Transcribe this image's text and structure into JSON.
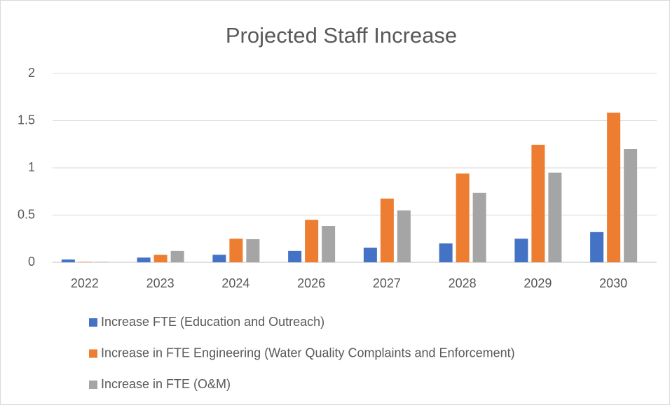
{
  "chart_data": {
    "type": "bar",
    "title": "Projected Staff Increase",
    "categories": [
      "2022",
      "2023",
      "2024",
      "2026",
      "2027",
      "2028",
      "2029",
      "2030"
    ],
    "series": [
      {
        "name": "Increase FTE (Education and Outreach)",
        "color": "#4472c4",
        "values": [
          0.03,
          0.05,
          0.08,
          0.12,
          0.155,
          0.2,
          0.25,
          0.32
        ]
      },
      {
        "name": "Increase in FTE Engineering (Water Quality Complaints and Enforcement)",
        "color": "#ed7d31",
        "values": [
          0.005,
          0.08,
          0.25,
          0.45,
          0.675,
          0.94,
          1.245,
          1.585
        ]
      },
      {
        "name": "Increase in FTE (O&M)",
        "color": "#a5a5a5",
        "values": [
          0.005,
          0.12,
          0.245,
          0.385,
          0.55,
          0.735,
          0.95,
          1.2
        ]
      }
    ],
    "ylim": [
      0,
      2
    ],
    "yticks": [
      0,
      0.5,
      1,
      1.5,
      2
    ],
    "grid": true,
    "legend": "bottom"
  }
}
